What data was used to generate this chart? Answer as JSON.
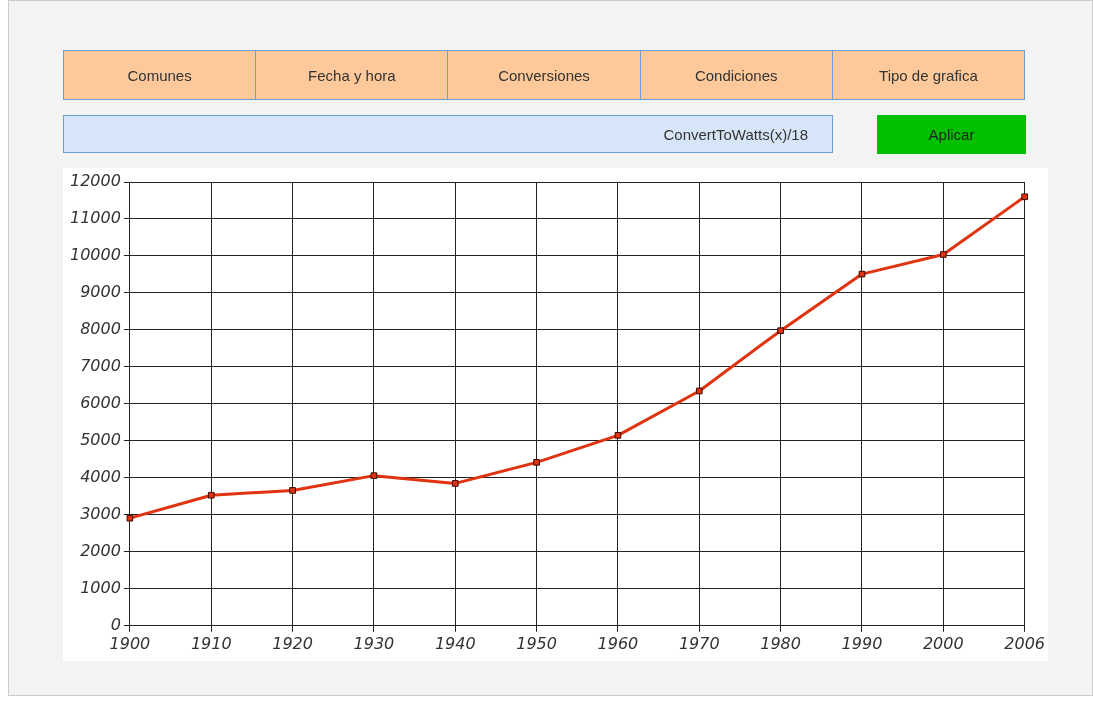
{
  "chart_data": {
    "type": "line",
    "categories": [
      "1900",
      "1910",
      "1920",
      "1930",
      "1940",
      "1950",
      "1960",
      "1970",
      "1980",
      "1990",
      "2000",
      "2006"
    ],
    "series": [
      {
        "color": "#e0330f",
        "values": [
          2910,
          3530,
          3660,
          4060,
          3850,
          4420,
          5150,
          6350,
          7980,
          9510,
          10040,
          11600
        ]
      }
    ],
    "ylim": [
      0,
      12000
    ],
    "yticks": [
      0,
      1000,
      2000,
      3000,
      4000,
      5000,
      6000,
      7000,
      8000,
      9000,
      10000,
      11000,
      12000
    ],
    "grid": true,
    "legend": false,
    "marker": "square",
    "line_style": "solid",
    "annotations": [
      "Comunes",
      "Fecha y hora",
      "Conversiones",
      "Condiciones",
      "Tipo de grafica",
      "ConvertToWatts(x)/18",
      "Aplicar"
    ]
  }
}
